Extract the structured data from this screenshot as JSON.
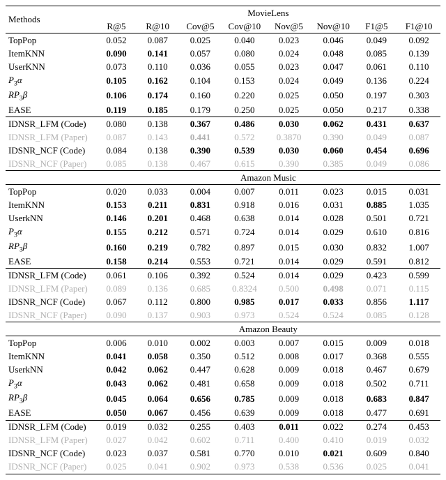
{
  "columns": [
    "R@5",
    "R@10",
    "Cov@5",
    "Cov@10",
    "Nov@5",
    "Nov@10",
    "F1@5",
    "F1@10"
  ],
  "methods_header": "Methods",
  "datasets": [
    {
      "name": "MovieLens",
      "block1": [
        {
          "method": "TopPop",
          "vals": [
            {
              "t": "0.052"
            },
            {
              "t": "0.087"
            },
            {
              "t": "0.025"
            },
            {
              "t": "0.040"
            },
            {
              "t": "0.023"
            },
            {
              "t": "0.046"
            },
            {
              "t": "0.049"
            },
            {
              "t": "0.092"
            }
          ]
        },
        {
          "method": "ItemKNN",
          "vals": [
            {
              "t": "0.090",
              "b": true
            },
            {
              "t": "0.141",
              "b": true
            },
            {
              "t": "0.057"
            },
            {
              "t": "0.080"
            },
            {
              "t": "0.024"
            },
            {
              "t": "0.048"
            },
            {
              "t": "0.085"
            },
            {
              "t": "0.139"
            }
          ]
        },
        {
          "method": "UserKNN",
          "vals": [
            {
              "t": "0.073"
            },
            {
              "t": "0.110"
            },
            {
              "t": "0.036"
            },
            {
              "t": "0.055"
            },
            {
              "t": "0.023"
            },
            {
              "t": "0.047"
            },
            {
              "t": "0.061"
            },
            {
              "t": "0.110"
            }
          ]
        },
        {
          "method": "P3a",
          "method_html": "<span class=\"italic\">P</span><sub>3</sub><span class=\"italic\">α</span>",
          "vals": [
            {
              "t": "0.105",
              "b": true
            },
            {
              "t": "0.162",
              "b": true
            },
            {
              "t": "0.104"
            },
            {
              "t": "0.153"
            },
            {
              "t": "0.024"
            },
            {
              "t": "0.049"
            },
            {
              "t": "0.136"
            },
            {
              "t": "0.224"
            }
          ]
        },
        {
          "method": "RP3b",
          "method_html": "<span class=\"italic\">RP</span><sub>3</sub><span class=\"italic\">β</span>",
          "vals": [
            {
              "t": "0.106",
              "b": true
            },
            {
              "t": "0.174",
              "b": true
            },
            {
              "t": "0.160"
            },
            {
              "t": "0.220"
            },
            {
              "t": "0.025"
            },
            {
              "t": "0.050"
            },
            {
              "t": "0.197"
            },
            {
              "t": "0.303"
            }
          ]
        },
        {
          "method": "EASE",
          "vals": [
            {
              "t": "0.119",
              "b": true
            },
            {
              "t": "0.185",
              "b": true
            },
            {
              "t": "0.179"
            },
            {
              "t": "0.250"
            },
            {
              "t": "0.025"
            },
            {
              "t": "0.050"
            },
            {
              "t": "0.217"
            },
            {
              "t": "0.338"
            }
          ]
        }
      ],
      "block2": [
        {
          "method": "IDNSR_LFM (Code)",
          "vals": [
            {
              "t": "0.080"
            },
            {
              "t": "0.138"
            },
            {
              "t": "0.367",
              "b": true
            },
            {
              "t": "0.486",
              "b": true
            },
            {
              "t": "0.030",
              "b": true
            },
            {
              "t": "0.062",
              "b": true
            },
            {
              "t": "0.431",
              "b": true
            },
            {
              "t": "0.637",
              "b": true
            }
          ]
        },
        {
          "method": "IDNSR_LFM (Paper)",
          "gray": true,
          "vals": [
            {
              "t": "0.087"
            },
            {
              "t": "0.143"
            },
            {
              "t": "0.441",
              "b": true
            },
            {
              "t": "0.572"
            },
            {
              "t": "0.3870"
            },
            {
              "t": "0.390"
            },
            {
              "t": "0.049"
            },
            {
              "t": "0.087"
            }
          ]
        },
        {
          "method": "IDSNR_NCF (Code)",
          "vals": [
            {
              "t": "0.084"
            },
            {
              "t": "0.138"
            },
            {
              "t": "0.390",
              "b": true
            },
            {
              "t": "0.539",
              "b": true
            },
            {
              "t": "0.030",
              "b": true
            },
            {
              "t": "0.060",
              "b": true
            },
            {
              "t": "0.454",
              "b": true
            },
            {
              "t": "0.696",
              "b": true
            }
          ]
        },
        {
          "method": "IDSNR_NCF (Paper)",
          "gray": true,
          "vals": [
            {
              "t": "0.085"
            },
            {
              "t": "0.138"
            },
            {
              "t": "0.467"
            },
            {
              "t": "0.615"
            },
            {
              "t": "0.390"
            },
            {
              "t": "0.385"
            },
            {
              "t": "0.049"
            },
            {
              "t": "0.086"
            }
          ]
        }
      ]
    },
    {
      "name": "Amazon Music",
      "block1": [
        {
          "method": "TopPop",
          "vals": [
            {
              "t": "0.020"
            },
            {
              "t": "0.033"
            },
            {
              "t": "0.004"
            },
            {
              "t": "0.007"
            },
            {
              "t": "0.011"
            },
            {
              "t": "0.023"
            },
            {
              "t": "0.015"
            },
            {
              "t": "0.031"
            }
          ]
        },
        {
          "method": "ItemKNN",
          "vals": [
            {
              "t": "0.153",
              "b": true
            },
            {
              "t": "0.211",
              "b": true
            },
            {
              "t": "0.831",
              "b": true
            },
            {
              "t": "0.918"
            },
            {
              "t": "0.016"
            },
            {
              "t": "0.031"
            },
            {
              "t": "0.885",
              "b": true
            },
            {
              "t": "1.035"
            }
          ]
        },
        {
          "method": "UserkNN",
          "vals": [
            {
              "t": "0.146",
              "b": true
            },
            {
              "t": "0.201",
              "b": true
            },
            {
              "t": "0.468"
            },
            {
              "t": "0.638"
            },
            {
              "t": "0.014"
            },
            {
              "t": "0.028"
            },
            {
              "t": "0.501"
            },
            {
              "t": "0.721"
            }
          ]
        },
        {
          "method": "P3a",
          "method_html": "<span class=\"italic\">P</span><sub>3</sub><span class=\"italic\">α</span>",
          "vals": [
            {
              "t": "0.155",
              "b": true
            },
            {
              "t": "0.212",
              "b": true
            },
            {
              "t": "0.571"
            },
            {
              "t": "0.724"
            },
            {
              "t": "0.014"
            },
            {
              "t": "0.029"
            },
            {
              "t": "0.610"
            },
            {
              "t": "0.816"
            }
          ]
        },
        {
          "method": "RP3b",
          "method_html": "<span class=\"italic\">RP</span><sub>3</sub><span class=\"italic\">β</span>",
          "vals": [
            {
              "t": "0.160",
              "b": true
            },
            {
              "t": "0.219",
              "b": true
            },
            {
              "t": "0.782"
            },
            {
              "t": "0.897"
            },
            {
              "t": "0.015"
            },
            {
              "t": "0.030"
            },
            {
              "t": "0.832"
            },
            {
              "t": "1.007"
            }
          ]
        },
        {
          "method": "EASE",
          "vals": [
            {
              "t": "0.158",
              "b": true
            },
            {
              "t": "0.214",
              "b": true
            },
            {
              "t": "0.553"
            },
            {
              "t": "0.721"
            },
            {
              "t": "0.014"
            },
            {
              "t": "0.029"
            },
            {
              "t": "0.591"
            },
            {
              "t": "0.812"
            }
          ]
        }
      ],
      "block2": [
        {
          "method": "IDNSR_LFM (Code)",
          "vals": [
            {
              "t": "0.061"
            },
            {
              "t": "0.106"
            },
            {
              "t": "0.392"
            },
            {
              "t": "0.524"
            },
            {
              "t": "0.014"
            },
            {
              "t": "0.029"
            },
            {
              "t": "0.423"
            },
            {
              "t": "0.599"
            }
          ]
        },
        {
          "method": "IDNSR_LFM (Paper)",
          "gray": true,
          "vals": [
            {
              "t": "0.089"
            },
            {
              "t": "0.136"
            },
            {
              "t": "0.685"
            },
            {
              "t": "0.8324"
            },
            {
              "t": "0.500"
            },
            {
              "t": "0.498",
              "b": true
            },
            {
              "t": "0.071"
            },
            {
              "t": "0.115"
            }
          ]
        },
        {
          "method": "IDSNR_NCF (Code)",
          "vals": [
            {
              "t": "0.067"
            },
            {
              "t": "0.112"
            },
            {
              "t": "0.800"
            },
            {
              "t": "0.985",
              "b": true
            },
            {
              "t": "0.017",
              "b": true
            },
            {
              "t": "0.033",
              "b": true
            },
            {
              "t": "0.856"
            },
            {
              "t": "1.117",
              "b": true
            }
          ]
        },
        {
          "method": "IDSNR_NCF (Paper)",
          "gray": true,
          "vals": [
            {
              "t": "0.090"
            },
            {
              "t": "0.137"
            },
            {
              "t": "0.903"
            },
            {
              "t": "0.973"
            },
            {
              "t": "0.524"
            },
            {
              "t": "0.524"
            },
            {
              "t": "0.085"
            },
            {
              "t": "0.128"
            }
          ]
        }
      ]
    },
    {
      "name": "Amazon Beauty",
      "block1": [
        {
          "method": "TopPop",
          "vals": [
            {
              "t": "0.006"
            },
            {
              "t": "0.010"
            },
            {
              "t": "0.002"
            },
            {
              "t": "0.003"
            },
            {
              "t": "0.007"
            },
            {
              "t": "0.015"
            },
            {
              "t": "0.009"
            },
            {
              "t": "0.018"
            }
          ]
        },
        {
          "method": "ItemKNN",
          "vals": [
            {
              "t": "0.041",
              "b": true
            },
            {
              "t": "0.058",
              "b": true
            },
            {
              "t": "0.350"
            },
            {
              "t": "0.512"
            },
            {
              "t": "0.008"
            },
            {
              "t": "0.017"
            },
            {
              "t": "0.368"
            },
            {
              "t": "0.555"
            }
          ]
        },
        {
          "method": "UserkNN",
          "vals": [
            {
              "t": "0.042",
              "b": true
            },
            {
              "t": "0.062",
              "b": true
            },
            {
              "t": "0.447"
            },
            {
              "t": "0.628"
            },
            {
              "t": "0.009"
            },
            {
              "t": "0.018"
            },
            {
              "t": "0.467"
            },
            {
              "t": "0.679"
            }
          ]
        },
        {
          "method": "P3a",
          "method_html": "<span class=\"italic\">P</span><sub>3</sub><span class=\"italic\">α</span>",
          "vals": [
            {
              "t": "0.043",
              "b": true
            },
            {
              "t": "0.062",
              "b": true
            },
            {
              "t": "0.481"
            },
            {
              "t": "0.658"
            },
            {
              "t": "0.009"
            },
            {
              "t": "0.018"
            },
            {
              "t": "0.502"
            },
            {
              "t": "0.711"
            }
          ]
        },
        {
          "method": "RP3b",
          "method_html": "<span class=\"italic\">RP</span><sub>3</sub><span class=\"italic\">β</span>",
          "vals": [
            {
              "t": "0.045",
              "b": true
            },
            {
              "t": "0.064",
              "b": true
            },
            {
              "t": "0.656",
              "b": true
            },
            {
              "t": "0.785",
              "b": true
            },
            {
              "t": "0.009"
            },
            {
              "t": "0.018"
            },
            {
              "t": "0.683",
              "b": true
            },
            {
              "t": "0.847",
              "b": true
            }
          ]
        },
        {
          "method": "EASE",
          "vals": [
            {
              "t": "0.050",
              "b": true
            },
            {
              "t": "0.067",
              "b": true
            },
            {
              "t": "0.456"
            },
            {
              "t": "0.639"
            },
            {
              "t": "0.009"
            },
            {
              "t": "0.018"
            },
            {
              "t": "0.477"
            },
            {
              "t": "0.691"
            }
          ]
        }
      ],
      "block2": [
        {
          "method": "IDNSR_LFM (Code)",
          "vals": [
            {
              "t": "0.019"
            },
            {
              "t": "0.032"
            },
            {
              "t": "0.255"
            },
            {
              "t": "0.403"
            },
            {
              "t": "0.011",
              "b": true
            },
            {
              "t": "0.022"
            },
            {
              "t": "0.274"
            },
            {
              "t": "0.453"
            }
          ]
        },
        {
          "method": "IDNSR_LFM (Paper)",
          "gray": true,
          "vals": [
            {
              "t": "0.027"
            },
            {
              "t": "0.042"
            },
            {
              "t": "0.602"
            },
            {
              "t": "0.711"
            },
            {
              "t": "0.400"
            },
            {
              "t": "0.410"
            },
            {
              "t": "0.019"
            },
            {
              "t": "0.032"
            }
          ]
        },
        {
          "method": "IDSNR_NCF (Code)",
          "vals": [
            {
              "t": "0.023"
            },
            {
              "t": "0.037"
            },
            {
              "t": "0.581"
            },
            {
              "t": "0.770"
            },
            {
              "t": "0.010"
            },
            {
              "t": "0.021",
              "b": true
            },
            {
              "t": "0.609"
            },
            {
              "t": "0.840"
            }
          ]
        },
        {
          "method": "IDSNR_NCF (Paper)",
          "gray": true,
          "vals": [
            {
              "t": "0.025"
            },
            {
              "t": "0.041"
            },
            {
              "t": "0.902"
            },
            {
              "t": "0.973"
            },
            {
              "t": "0.538"
            },
            {
              "t": "0.536"
            },
            {
              "t": "0.025"
            },
            {
              "t": "0.041"
            }
          ]
        }
      ]
    }
  ]
}
